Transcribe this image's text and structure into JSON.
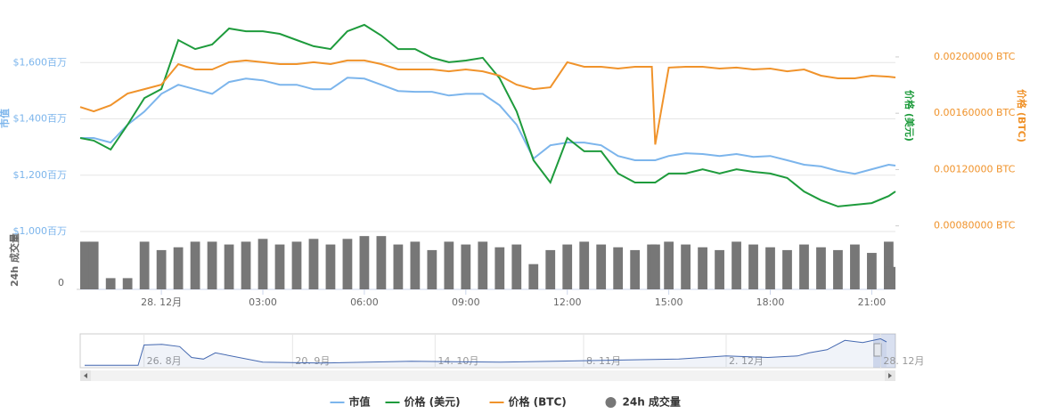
{
  "chart_data": {
    "type": "line",
    "x": [
      -2.4,
      -2,
      -1.5,
      -1,
      -0.5,
      0,
      0.5,
      1,
      1.5,
      2,
      2.5,
      3,
      3.5,
      4,
      4.5,
      5,
      5.5,
      6,
      6.5,
      7,
      7.5,
      8,
      8.5,
      9,
      9.5,
      10,
      10.5,
      11,
      11.5,
      12,
      12.5,
      13,
      13.5,
      14,
      14.5,
      14.6,
      15,
      15.5,
      16,
      16.5,
      17,
      17.5,
      18,
      18.5,
      19,
      19.5,
      20,
      20.5,
      21,
      21.5,
      21.7
    ],
    "xlim": [
      -2.4,
      21.7
    ],
    "xticks": [
      {
        "value": 0,
        "label": "28. 12月"
      },
      {
        "value": 3,
        "label": "03:00"
      },
      {
        "value": 6,
        "label": "06:00"
      },
      {
        "value": 9,
        "label": "09:00"
      },
      {
        "value": 12,
        "label": "12:00"
      },
      {
        "value": 15,
        "label": "15:00"
      },
      {
        "value": 18,
        "label": "18:00"
      },
      {
        "value": 21,
        "label": "21:00"
      }
    ],
    "ylabel": "市值",
    "ylim": [
      1000,
      1800
    ],
    "yticks": [
      {
        "value": 1000,
        "label": "$1,000百万"
      },
      {
        "value": 1200,
        "label": "$1,200百万"
      },
      {
        "value": 1400,
        "label": "$1,400百万"
      },
      {
        "value": 1600,
        "label": "$1,600百万"
      }
    ],
    "y2label": "价格 (BTC)",
    "y2lim": [
      0.00076,
      0.00236
    ],
    "y2ticks": [
      {
        "value": 0.0008,
        "label": "0.00080000 BTC"
      },
      {
        "value": 0.0012,
        "label": "0.00120000 BTC"
      },
      {
        "value": 0.0016,
        "label": "0.00160000 BTC"
      },
      {
        "value": 0.002,
        "label": "0.00200000 BTC"
      }
    ],
    "y3label": "价格 (美元)",
    "y3lim": [
      0.75,
      1.55
    ],
    "y4label": "24h 成交量",
    "y4lim": [
      0,
      100
    ],
    "y4ticks": [
      0
    ],
    "grid": true,
    "series": [
      {
        "name": "市值",
        "type": "line",
        "axis": "y",
        "color": "#7cb5ec",
        "values": [
          1332,
          1332,
          1316,
          1379,
          1426,
          1489,
          1521,
          1505,
          1489,
          1531,
          1543,
          1537,
          1521,
          1521,
          1505,
          1505,
          1546,
          1543,
          1521,
          1499,
          1496,
          1496,
          1483,
          1489,
          1489,
          1448,
          1379,
          1259,
          1306,
          1316,
          1316,
          1306,
          1268,
          1253,
          1253,
          1253,
          1268,
          1278,
          1275,
          1268,
          1275,
          1265,
          1268,
          1253,
          1237,
          1231,
          1215,
          1205,
          1221,
          1237,
          1234
        ]
      },
      {
        "name": "价格 (美元)",
        "type": "line",
        "axis": "y3",
        "color": "#1e9b3c",
        "values": [
          1.082,
          1.073,
          1.041,
          1.129,
          1.224,
          1.256,
          1.43,
          1.398,
          1.414,
          1.471,
          1.461,
          1.461,
          1.452,
          1.43,
          1.408,
          1.398,
          1.461,
          1.484,
          1.446,
          1.398,
          1.398,
          1.367,
          1.351,
          1.357,
          1.367,
          1.294,
          1.177,
          1.003,
          0.924,
          1.082,
          1.035,
          1.035,
          0.956,
          0.924,
          0.924,
          0.924,
          0.956,
          0.956,
          0.971,
          0.956,
          0.971,
          0.962,
          0.956,
          0.94,
          0.892,
          0.861,
          0.839,
          0.845,
          0.851,
          0.876,
          0.892
        ]
      },
      {
        "name": "价格 (BTC)",
        "type": "line",
        "axis": "y2",
        "color": "#f0932b",
        "values": [
          0.001644,
          0.001613,
          0.001657,
          0.00174,
          0.001771,
          0.001803,
          0.001949,
          0.001911,
          0.001911,
          0.001962,
          0.001975,
          0.001962,
          0.001949,
          0.001949,
          0.001962,
          0.001949,
          0.001975,
          0.001975,
          0.001949,
          0.001911,
          0.001911,
          0.001911,
          0.001898,
          0.001911,
          0.001898,
          0.001867,
          0.001803,
          0.001771,
          0.001784,
          0.001962,
          0.00193,
          0.00193,
          0.001917,
          0.00193,
          0.00193,
          0.001378,
          0.001924,
          0.00193,
          0.00193,
          0.001917,
          0.001924,
          0.001911,
          0.001917,
          0.001898,
          0.001911,
          0.001867,
          0.001848,
          0.001848,
          0.001867,
          0.00186,
          0.001854
        ]
      },
      {
        "name": "24h 成交量",
        "type": "column",
        "axis": "y4",
        "color": "#777777",
        "values": [
          85,
          85,
          20,
          20,
          85,
          70,
          75,
          85,
          85,
          80,
          85,
          90,
          80,
          85,
          90,
          80,
          90,
          95,
          95,
          80,
          85,
          70,
          85,
          80,
          85,
          75,
          80,
          45,
          70,
          80,
          85,
          80,
          75,
          70,
          80,
          80,
          85,
          80,
          75,
          70,
          85,
          80,
          75,
          70,
          80,
          75,
          70,
          80,
          65,
          85,
          40
        ]
      }
    ],
    "navigator": {
      "x": [
        -10,
        -1,
        0,
        3,
        6,
        8,
        10,
        12,
        20,
        30,
        45,
        60,
        75,
        90,
        98,
        105,
        110,
        112,
        115,
        118,
        121,
        124,
        125
      ],
      "values": [
        5,
        5,
        70,
        72,
        65,
        30,
        25,
        45,
        15,
        12,
        18,
        15,
        20,
        25,
        35,
        30,
        35,
        45,
        55,
        85,
        78,
        90,
        80
      ],
      "xlim": [
        -10,
        125
      ],
      "ylim": [
        0,
        100
      ],
      "xticks": [
        {
          "value": 0,
          "label": "26. 8月"
        },
        {
          "value": 25,
          "label": "20. 9月"
        },
        {
          "value": 49,
          "label": "14. 10月"
        },
        {
          "value": 74,
          "label": "8. 11月"
        },
        {
          "value": 98,
          "label": "2. 12月"
        },
        {
          "value": 124,
          "label": "28. 12月"
        }
      ]
    }
  }
}
